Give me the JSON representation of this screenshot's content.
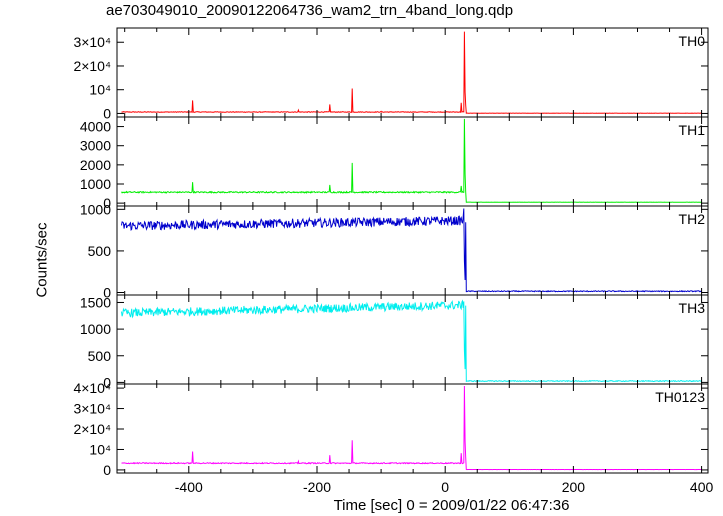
{
  "chart_data": {
    "type": "line",
    "title": "ae703049010_20090122064736_wam2_trn_4band_long.qdp",
    "xlabel": "Time [sec] 0 = 2009/01/22 06:47:36",
    "ylabel": "Counts/sec",
    "xlim": [
      -512,
      410
    ],
    "xticks": [
      -400,
      -200,
      0,
      200,
      400
    ],
    "grid": false,
    "panels": [
      {
        "name": "TH0",
        "color": "#ff0000",
        "ylim": [
          -1500,
          36000
        ],
        "yticks": [
          {
            "v": 0,
            "label": "0"
          },
          {
            "v": 10000,
            "label": "10⁴"
          },
          {
            "v": 20000,
            "label": "2×10⁴"
          },
          {
            "v": 30000,
            "label": "3×10⁴"
          }
        ],
        "baseline": 600,
        "noise": 120,
        "end_level": 120,
        "spikes": [
          [
            -394,
            5500
          ],
          [
            -229,
            1400
          ],
          [
            -180,
            3800
          ],
          [
            -145,
            10500
          ],
          [
            -100,
            900
          ],
          [
            25,
            4500
          ],
          [
            30,
            34500
          ],
          [
            31,
            9000
          ],
          [
            32,
            3500
          ]
        ]
      },
      {
        "name": "TH1",
        "color": "#00ee00",
        "ylim": [
          -150,
          4500
        ],
        "yticks": [
          {
            "v": 0,
            "label": "0"
          },
          {
            "v": 1000,
            "label": "1000"
          },
          {
            "v": 2000,
            "label": "2000"
          },
          {
            "v": 3000,
            "label": "3000"
          },
          {
            "v": 4000,
            "label": "4000"
          }
        ],
        "baseline": 570,
        "noise": 35,
        "end_level": 50,
        "spikes": [
          [
            -394,
            1100
          ],
          [
            -180,
            950
          ],
          [
            -145,
            2100
          ],
          [
            25,
            900
          ],
          [
            30,
            4400
          ],
          [
            31,
            1500
          ]
        ]
      },
      {
        "name": "TH2",
        "color": "#0000cc",
        "ylim": [
          -30,
          1040
        ],
        "yticks": [
          {
            "v": 0,
            "label": "0"
          },
          {
            "v": 500,
            "label": "500"
          },
          {
            "v": 1000,
            "label": "1000"
          }
        ],
        "baseline": 800,
        "noise": 55,
        "trend": 0.12,
        "end_level": 15,
        "spikes": [
          [
            29,
            1010
          ],
          [
            30,
            380
          ],
          [
            31,
            150
          ]
        ]
      },
      {
        "name": "TH3",
        "color": "#00eeee",
        "ylim": [
          -30,
          1640
        ],
        "yticks": [
          {
            "v": 0,
            "label": "0"
          },
          {
            "v": 500,
            "label": "500"
          },
          {
            "v": 1000,
            "label": "1000"
          },
          {
            "v": 1500,
            "label": "1500"
          }
        ],
        "baseline": 1300,
        "noise": 80,
        "trend": 0.28,
        "end_level": 25,
        "spikes": [
          [
            29,
            1520
          ],
          [
            30,
            600
          ],
          [
            31,
            250
          ]
        ]
      },
      {
        "name": "TH0123",
        "color": "#ff00ff",
        "ylim": [
          -1500,
          42000
        ],
        "yticks": [
          {
            "v": 0,
            "label": "0"
          },
          {
            "v": 10000,
            "label": "10⁴"
          },
          {
            "v": 20000,
            "label": "2×10⁴"
          },
          {
            "v": 30000,
            "label": "3×10⁴"
          },
          {
            "v": 40000,
            "label": "4×10⁴"
          }
        ],
        "baseline": 3300,
        "noise": 250,
        "end_level": 200,
        "spikes": [
          [
            -394,
            9000
          ],
          [
            -229,
            4200
          ],
          [
            -180,
            7200
          ],
          [
            -145,
            14500
          ],
          [
            25,
            8200
          ],
          [
            30,
            41000
          ],
          [
            31,
            14000
          ],
          [
            32,
            6000
          ]
        ]
      }
    ]
  }
}
